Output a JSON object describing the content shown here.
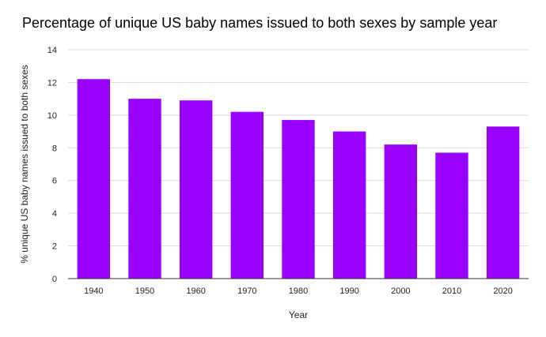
{
  "chart_data": {
    "type": "bar",
    "title": "Percentage of unique US baby names issued to both sexes by sample year",
    "xlabel": "Year",
    "ylabel": "% unique US baby names issued to both sexes",
    "categories": [
      "1940",
      "1950",
      "1960",
      "1970",
      "1980",
      "1990",
      "2000",
      "2010",
      "2020"
    ],
    "values": [
      12.2,
      11.0,
      10.9,
      10.2,
      9.7,
      9.0,
      8.2,
      7.7,
      9.3
    ],
    "ylim": [
      0,
      14
    ],
    "yticks": [
      "0",
      "2",
      "4",
      "6",
      "8",
      "10",
      "12",
      "14"
    ],
    "grid": true,
    "legend": "none",
    "colors": {
      "bar": "#9900ff",
      "grid": "#d9d9d9",
      "axis": "#333333"
    }
  }
}
